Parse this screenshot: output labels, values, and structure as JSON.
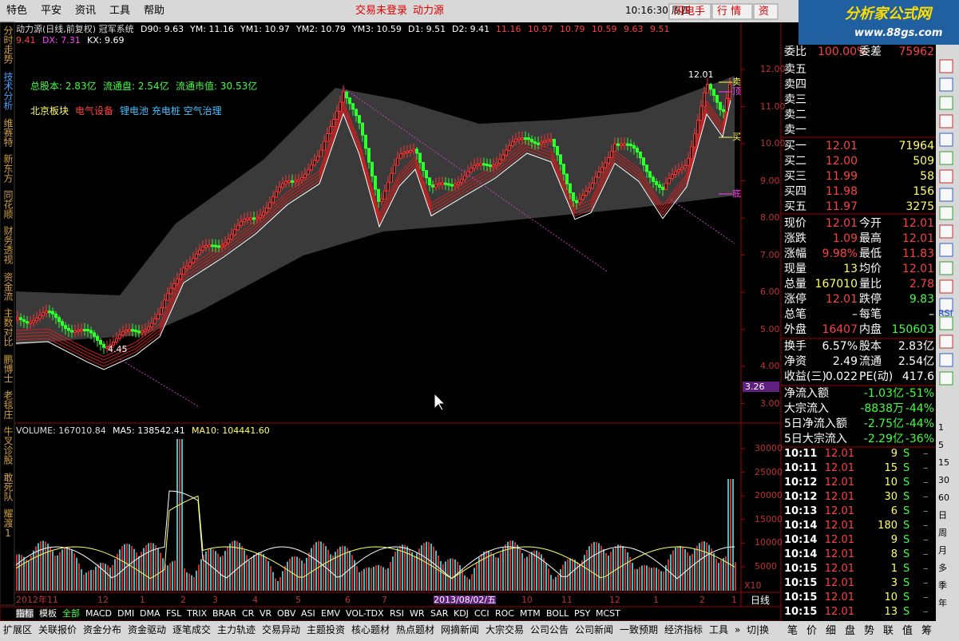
{
  "menu": [
    "特色",
    "平安",
    "资讯",
    "工具",
    "帮助"
  ],
  "status": {
    "login": "交易未登录",
    "stock": "动力源",
    "time": "10:16:30 周四"
  },
  "top_buttons": [
    "闪电手",
    "行 情",
    "资"
  ],
  "logo": {
    "title": "分析家公式网",
    "url": "www.88gs.com"
  },
  "left_tabs": [
    "分时走势",
    "技术分析",
    "维赛特",
    "新东方",
    "同花顺",
    "财务透视",
    "资金流",
    "主数对比",
    "鹏博士",
    "老毯庄",
    "牛叉诊股",
    "敢死队",
    "耀渡1"
  ],
  "chart": {
    "header1": [
      {
        "text": "动力源(日线,前复权) 冠军系统",
        "color": "#dddddd"
      },
      {
        "text": "D90: 9.63",
        "color": "#ffffff"
      },
      {
        "text": "YM: 11.16",
        "color": "#ffffff"
      },
      {
        "text": "YM1: 10.97",
        "color": "#ffffff"
      },
      {
        "text": "YM2: 10.79",
        "color": "#ffffff"
      },
      {
        "text": "YM3: 10.59",
        "color": "#ffffff"
      },
      {
        "text": "D1: 9.51",
        "color": "#ffffff"
      },
      {
        "text": "D2: 9.41",
        "color": "#ffffff"
      },
      {
        "text": "11.16",
        "color": "#ff4040"
      },
      {
        "text": "10.97",
        "color": "#ff4040"
      },
      {
        "text": "10.79",
        "color": "#ff4040"
      },
      {
        "text": "10.59",
        "color": "#ff4040"
      },
      {
        "text": "9.63",
        "color": "#ff4040"
      },
      {
        "text": "9.51",
        "color": "#ff4040"
      }
    ],
    "header2": [
      {
        "text": "9.41",
        "color": "#ff4040"
      },
      {
        "text": "DX: 7.31",
        "color": "#ff40ff"
      },
      {
        "text": "KX: 9.69",
        "color": "#ffffff"
      }
    ],
    "info": [
      {
        "text": "总股本: 2.83亿",
        "color": "#40ff40"
      },
      {
        "text": "流通盘: 2.54亿",
        "color": "#40ff40"
      },
      {
        "text": "流通市值: 30.53亿",
        "color": "#40ff40"
      }
    ],
    "sectors": [
      {
        "text": "北京板块",
        "color": "#ffff60"
      },
      {
        "text": "电气设备",
        "color": "#ff4040"
      },
      {
        "text": "锂电池 充电桩 空气治理",
        "color": "#40c0ff"
      }
    ],
    "price_ticks": [
      "12.00",
      "11.00",
      "10.00",
      "9.00",
      "8.00",
      "7.00",
      "6.00",
      "5.00",
      "4.00",
      "3.00"
    ],
    "high_label": "12.01",
    "low_label": "4.45",
    "cursor_price": "3.26",
    "side_marks": [
      {
        "text": "卖",
        "color": "#ffff60"
      },
      {
        "text": "顶",
        "color": "#ff40ff"
      },
      {
        "text": "买",
        "color": "#ffff60"
      },
      {
        "text": "底",
        "color": "#ff40ff"
      }
    ],
    "volume_header": [
      {
        "text": "VOLUME: 167010.84",
        "color": "#dddddd"
      },
      {
        "text": "MA5: 138542.41",
        "color": "#ffffff"
      },
      {
        "text": "MA10: 104441.60",
        "color": "#ffff60"
      }
    ],
    "volume_ticks": [
      "30000",
      "25000",
      "20000",
      "15000",
      "10000",
      "5000"
    ],
    "volume_unit": "X10",
    "dates": [
      "2012年11",
      "12",
      "1",
      "2",
      "3",
      "4",
      "5",
      "6",
      "7",
      "2013/08/02/五",
      "10",
      "11",
      "12",
      "1",
      "2",
      "1"
    ],
    "period": "日线"
  },
  "indicator_tabs": [
    "指标",
    "模板",
    "全部",
    "MACD",
    "DMI",
    "DMA",
    "FSL",
    "TRIX",
    "BRAR",
    "CR",
    "VR",
    "OBV",
    "ASI",
    "EMV",
    "VOL-TDX",
    "RSI",
    "WR",
    "SAR",
    "KDJ",
    "CCI",
    "ROC",
    "MTM",
    "BOLL",
    "PSY",
    "MCST"
  ],
  "bottom_tabs": [
    "扩展区",
    "关联报价",
    "资金分布",
    "资金驱动",
    "逐笔成交",
    "主力轨迹",
    "交易异动",
    "主题投资",
    "核心题材",
    "热点题材",
    "网摘新闻",
    "大宗交易",
    "公司公告",
    "公司新闻",
    "一致预期",
    "经济指标",
    "工具",
    "»",
    "切|换"
  ],
  "order_book": {
    "ratio_label": "委比",
    "ratio": "100.00%",
    "diff_label": "委差",
    "diff": "75962",
    "sells": [
      "卖五",
      "卖四",
      "卖三",
      "卖二",
      "卖一"
    ],
    "buys": [
      [
        "买一",
        "12.01",
        "71964"
      ],
      [
        "买二",
        "12.00",
        "509"
      ],
      [
        "买三",
        "11.99",
        "58"
      ],
      [
        "买四",
        "11.98",
        "156"
      ],
      [
        "买五",
        "11.97",
        "3275"
      ]
    ]
  },
  "quote": [
    [
      "现价",
      "12.01",
      "今开",
      "12.01"
    ],
    [
      "涨跌",
      "1.09",
      "最高",
      "12.01"
    ],
    [
      "涨幅",
      "9.98%",
      "最低",
      "11.83"
    ],
    [
      "现量",
      "13",
      "均价",
      "12.01"
    ],
    [
      "总量",
      "167010",
      "量比",
      "2.78"
    ],
    [
      "涨停",
      "12.01",
      "跌停",
      "9.83"
    ],
    [
      "总笔",
      "–",
      "每笔",
      "–"
    ],
    [
      "外盘",
      "16407",
      "内盘",
      "150603"
    ]
  ],
  "fundamentals": [
    [
      "换手",
      "6.57%",
      "股本",
      "2.83亿"
    ],
    [
      "净资",
      "2.49",
      "流通",
      "2.54亿"
    ],
    [
      "收益(三)",
      "0.022",
      "PE(动)",
      "417.6"
    ]
  ],
  "flows": [
    [
      "净流入额",
      "-1.03亿",
      "-51%"
    ],
    [
      "大宗流入",
      "-8838万",
      "-44%"
    ],
    [
      "5日净流入额",
      "-2.75亿",
      "-44%"
    ],
    [
      "5日大宗流入",
      "-2.29亿",
      "-36%"
    ]
  ],
  "trades": [
    [
      "10:11",
      "12.01",
      "9",
      "S",
      "–"
    ],
    [
      "10:11",
      "12.01",
      "15",
      "S",
      "–"
    ],
    [
      "10:12",
      "12.01",
      "10",
      "S",
      "–"
    ],
    [
      "10:12",
      "12.01",
      "30",
      "S",
      "–"
    ],
    [
      "10:13",
      "12.01",
      "6",
      "S",
      "–"
    ],
    [
      "10:14",
      "12.01",
      "180",
      "S",
      "–"
    ],
    [
      "10:14",
      "12.01",
      "9",
      "S",
      "–"
    ],
    [
      "10:14",
      "12.01",
      "8",
      "S",
      "–"
    ],
    [
      "10:15",
      "12.01",
      "1",
      "S",
      "–"
    ],
    [
      "10:15",
      "12.01",
      "3",
      "S",
      "–"
    ],
    [
      "10:15",
      "12.01",
      "10",
      "S",
      "–"
    ],
    [
      "10:15",
      "12.01",
      "13",
      "S",
      "–"
    ]
  ],
  "panel_tabs": [
    "笔",
    "价",
    "细",
    "盘",
    "势",
    "联",
    "值",
    "筹"
  ],
  "toolbar": [
    "RSI",
    "1",
    "5",
    "15",
    "30",
    "60",
    "日",
    "周",
    "月",
    "多",
    "季",
    "年"
  ]
}
